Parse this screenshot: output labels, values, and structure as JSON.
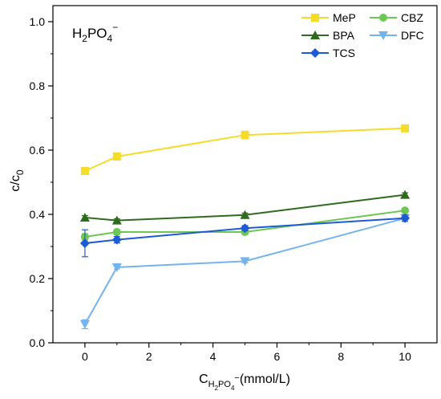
{
  "chart_data": {
    "type": "line",
    "annotation": "H2PO4−",
    "annotation_parts": {
      "base1": "H",
      "sub1": "2",
      "mid": "PO",
      "sub2": "4",
      "sup": "−"
    },
    "xlabel_parts": {
      "base": "C",
      "sub_a": "H",
      "sub_b": "2",
      "sub_c": "PO",
      "sub_d": "4",
      "sup": "−",
      "rest": "(mmol/L)"
    },
    "ylabel_parts": {
      "base": "c/c",
      "sub": "0"
    },
    "xlim": [
      -1,
      11
    ],
    "ylim": [
      0,
      1.05
    ],
    "x_ticks": [
      0,
      2,
      4,
      6,
      8,
      10
    ],
    "x_tick_labels": [
      "0",
      "2",
      "4",
      "6",
      "8",
      "10"
    ],
    "y_ticks": [
      0.0,
      0.2,
      0.4,
      0.6,
      0.8,
      1.0
    ],
    "y_tick_labels": [
      "0.0",
      "0.2",
      "0.4",
      "0.6",
      "0.8",
      "1.0"
    ],
    "grid": false,
    "legend_position": "top-right",
    "x": [
      0,
      1,
      5,
      10
    ],
    "series": [
      {
        "name": "MeP",
        "color": "#f5dc2a",
        "marker": "square",
        "values": [
          0.535,
          0.58,
          0.647,
          0.668
        ],
        "errors": [
          0.006,
          0.008,
          0.012,
          0.005
        ]
      },
      {
        "name": "CBZ",
        "color": "#6cc853",
        "marker": "circle",
        "values": [
          0.33,
          0.345,
          0.345,
          0.412
        ],
        "errors": [
          0.01,
          0.008,
          0.008,
          0.006
        ]
      },
      {
        "name": "BPA",
        "color": "#2f6b1e",
        "marker": "triangle-up",
        "values": [
          0.39,
          0.381,
          0.398,
          0.461
        ],
        "errors": [
          0.006,
          0.005,
          0.006,
          0.006
        ]
      },
      {
        "name": "DFC",
        "color": "#74b3ec",
        "marker": "triangle-down",
        "values": [
          0.058,
          0.235,
          0.254,
          0.388
        ],
        "errors": [
          0.014,
          0.005,
          0.005,
          0.01
        ]
      },
      {
        "name": "TCS",
        "color": "#1f5ad6",
        "marker": "diamond",
        "values": [
          0.31,
          0.321,
          0.357,
          0.388
        ],
        "errors": [
          0.042,
          0.01,
          0.008,
          0.01
        ]
      }
    ],
    "legend_order": [
      "MeP",
      "CBZ",
      "BPA",
      "DFC",
      "TCS"
    ]
  }
}
